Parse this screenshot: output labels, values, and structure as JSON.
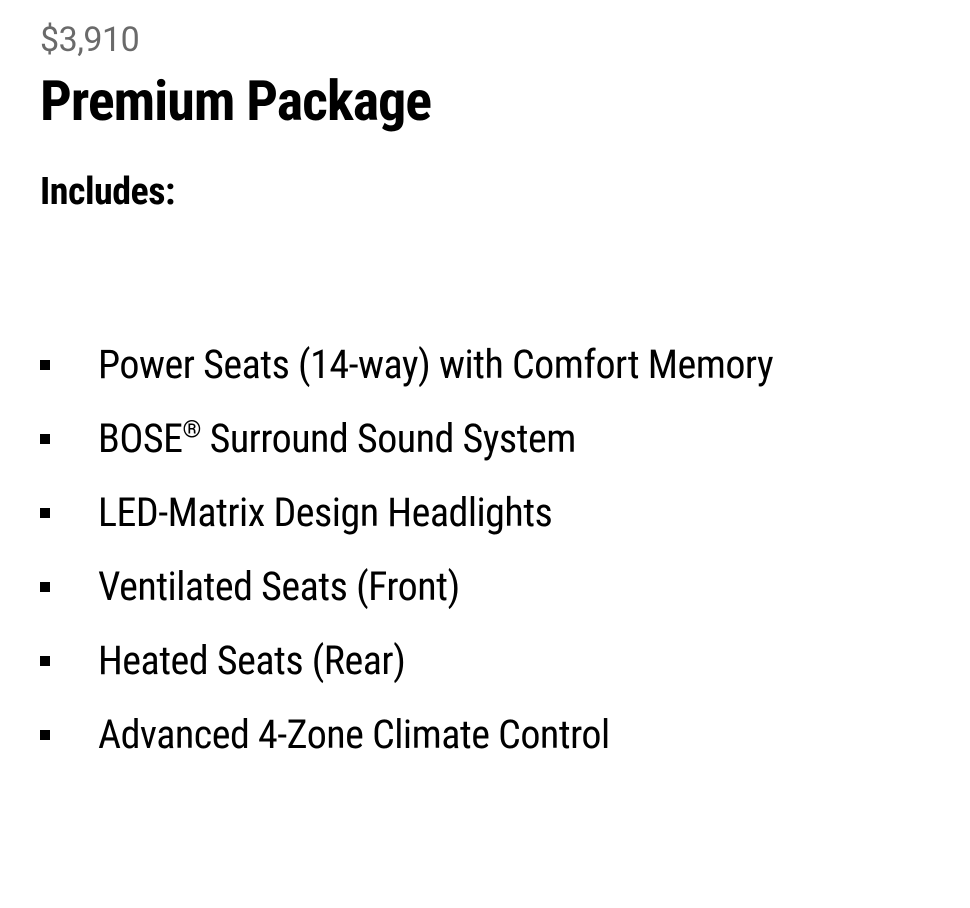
{
  "price": "$3,910",
  "package_title": "Premium Package",
  "includes_label": "Includes:",
  "features": [
    "Power Seats (14-way) with Comfort Memory",
    "BOSE® Surround Sound System",
    "LED-Matrix Design Headlights",
    "Ventilated Seats (Front)",
    "Heated Seats (Rear)",
    "Advanced 4-Zone Climate Control"
  ],
  "colors": {
    "price_text": "#6a6a6a",
    "title_text": "#000000",
    "body_text": "#000000",
    "background": "#ffffff",
    "bullet": "#000000"
  },
  "typography": {
    "price_fontsize": 34,
    "title_fontsize": 56,
    "includes_fontsize": 38,
    "feature_fontsize": 40
  }
}
